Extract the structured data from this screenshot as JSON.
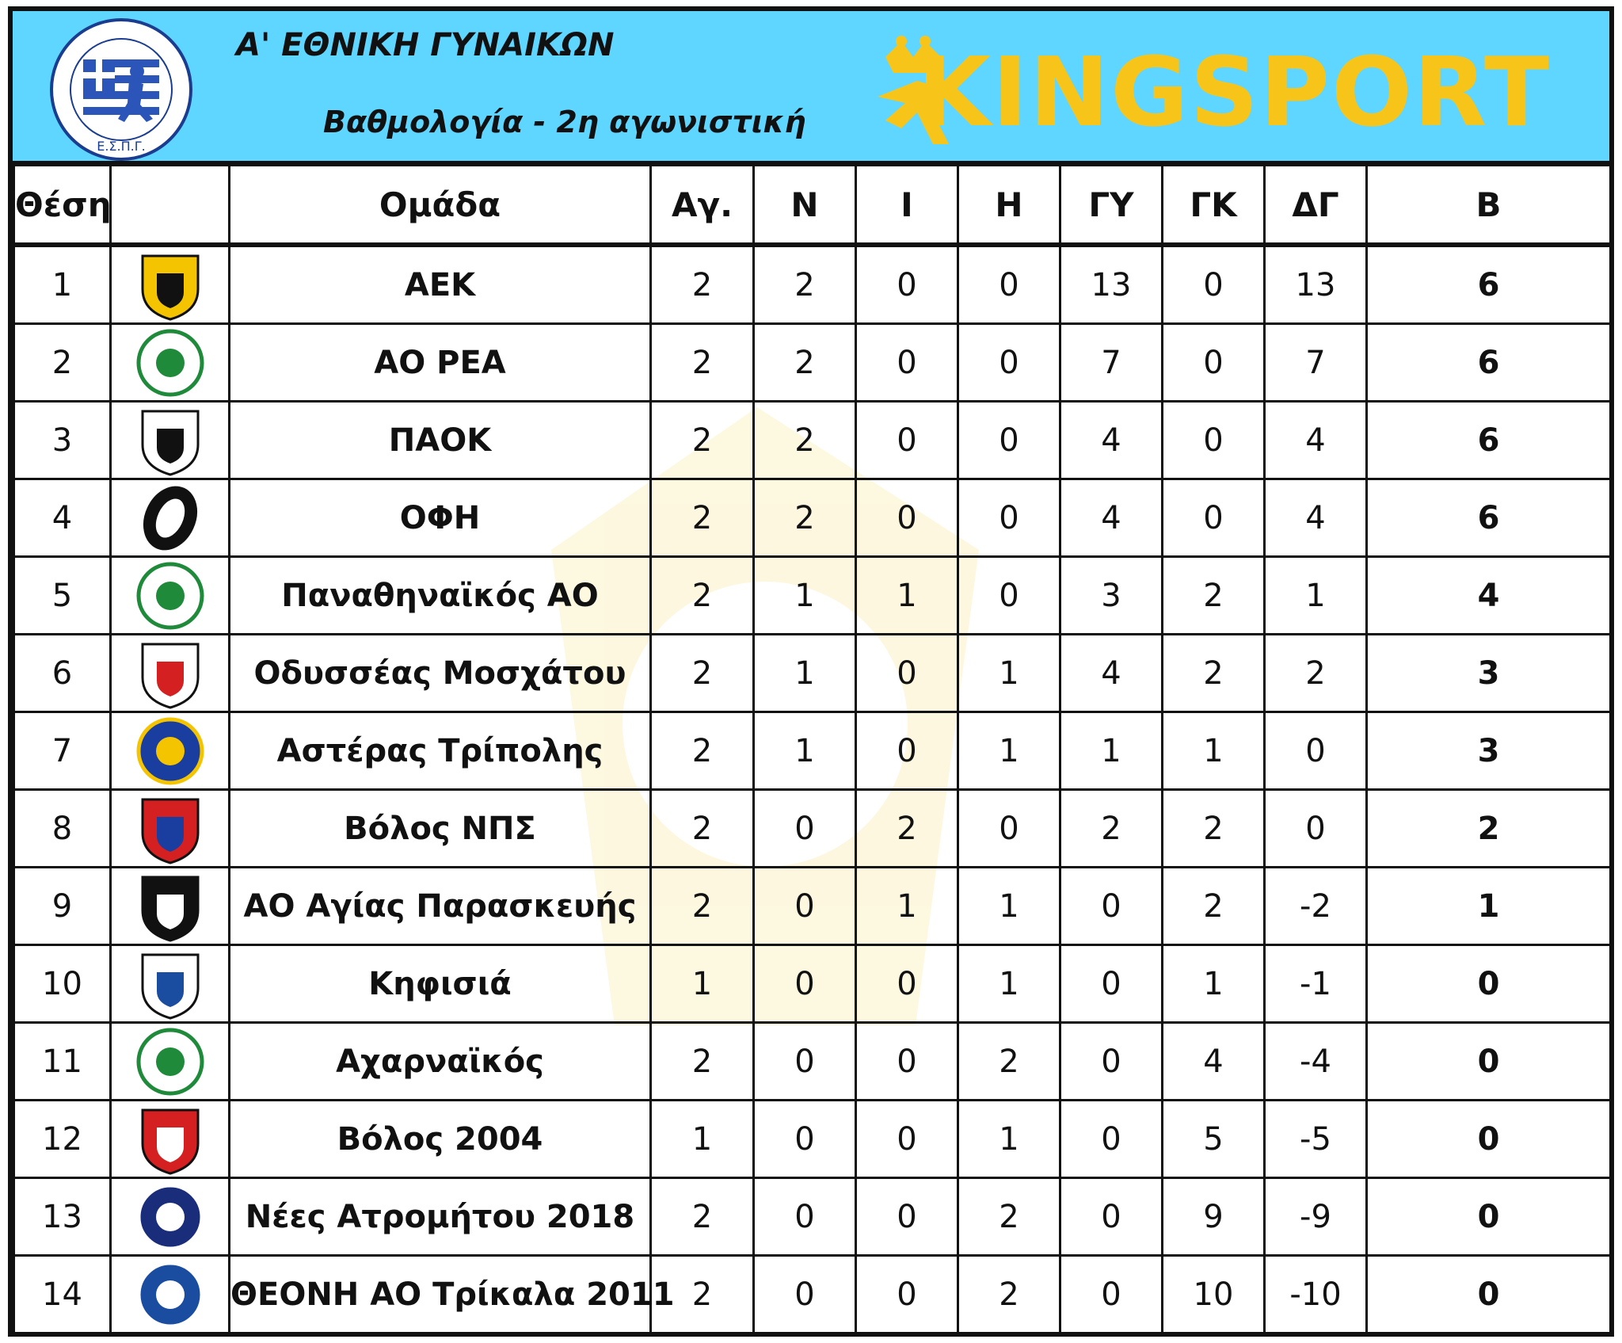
{
  "header": {
    "title": "Α' ΕΘΝΙΚΗ ΓΥΝΑΙΚΩΝ",
    "subtitle": "Βαθμολογία - 2η αγωνιστική",
    "brand": "KINGSPORT",
    "logo_text": "Ε.Σ.Π.Γ."
  },
  "columns": [
    "Θέση",
    "",
    "Ομάδα",
    "Αγ.",
    "Ν",
    "Ι",
    "Η",
    "ΓΥ",
    "ΓΚ",
    "ΔΓ",
    "Β"
  ],
  "rows": [
    {
      "pos": "1",
      "team": "ΑΕΚ",
      "p": "2",
      "w": "2",
      "d": "0",
      "l": "0",
      "gf": "13",
      "ga": "0",
      "gd": "13",
      "pts": "6",
      "crest": "aek-crest"
    },
    {
      "pos": "2",
      "team": "ΑΟ ΡΕΑ",
      "p": "2",
      "w": "2",
      "d": "0",
      "l": "0",
      "gf": "7",
      "ga": "0",
      "gd": "7",
      "pts": "6",
      "crest": "rea-crest"
    },
    {
      "pos": "3",
      "team": "ΠΑΟΚ",
      "p": "2",
      "w": "2",
      "d": "0",
      "l": "0",
      "gf": "4",
      "ga": "0",
      "gd": "4",
      "pts": "6",
      "crest": "paok-crest"
    },
    {
      "pos": "4",
      "team": "ΟΦΗ",
      "p": "2",
      "w": "2",
      "d": "0",
      "l": "0",
      "gf": "4",
      "ga": "0",
      "gd": "4",
      "pts": "6",
      "crest": "ofi-crest"
    },
    {
      "pos": "5",
      "team": "Παναθηναϊκός ΑΟ",
      "p": "2",
      "w": "1",
      "d": "1",
      "l": "0",
      "gf": "3",
      "ga": "2",
      "gd": "1",
      "pts": "4",
      "crest": "panathinaikos-crest"
    },
    {
      "pos": "6",
      "team": "Οδυσσέας Μοσχάτου",
      "p": "2",
      "w": "1",
      "d": "0",
      "l": "1",
      "gf": "4",
      "ga": "2",
      "gd": "2",
      "pts": "3",
      "crest": "odysseas-crest"
    },
    {
      "pos": "7",
      "team": "Αστέρας Τρίπολης",
      "p": "2",
      "w": "1",
      "d": "0",
      "l": "1",
      "gf": "1",
      "ga": "1",
      "gd": "0",
      "pts": "3",
      "crest": "asteras-crest"
    },
    {
      "pos": "8",
      "team": "Βόλος ΝΠΣ",
      "p": "2",
      "w": "0",
      "d": "2",
      "l": "0",
      "gf": "2",
      "ga": "2",
      "gd": "0",
      "pts": "2",
      "crest": "volos-nps-crest"
    },
    {
      "pos": "9",
      "team": "ΑΟ Αγίας Παρασκευής",
      "p": "2",
      "w": "0",
      "d": "1",
      "l": "1",
      "gf": "0",
      "ga": "2",
      "gd": "-2",
      "pts": "1",
      "crest": "agia-paraskevi-crest"
    },
    {
      "pos": "10",
      "team": "Κηφισιά",
      "p": "1",
      "w": "0",
      "d": "0",
      "l": "1",
      "gf": "0",
      "ga": "1",
      "gd": "-1",
      "pts": "0",
      "crest": "kifisia-crest"
    },
    {
      "pos": "11",
      "team": "Αχαρναϊκός",
      "p": "2",
      "w": "0",
      "d": "0",
      "l": "2",
      "gf": "0",
      "ga": "4",
      "gd": "-4",
      "pts": "0",
      "crest": "acharnaikos-crest"
    },
    {
      "pos": "12",
      "team": "Βόλος 2004",
      "p": "1",
      "w": "0",
      "d": "0",
      "l": "1",
      "gf": "0",
      "ga": "5",
      "gd": "-5",
      "pts": "0",
      "crest": "volos-2004-crest"
    },
    {
      "pos": "13",
      "team": "Νέες Ατρομήτου 2018",
      "p": "2",
      "w": "0",
      "d": "0",
      "l": "2",
      "gf": "0",
      "ga": "9",
      "gd": "-9",
      "pts": "0",
      "crest": "nees-atromitou-crest"
    },
    {
      "pos": "14",
      "team": "ΘΕΟΝΗ ΑΟ Τρίκαλα 2011",
      "p": "2",
      "w": "0",
      "d": "0",
      "l": "2",
      "gf": "0",
      "ga": "10",
      "gd": "-10",
      "pts": "0",
      "crest": "trikala-crest"
    }
  ],
  "colors": {
    "header_bg": "#5fd6ff",
    "brand": "#f7c51a",
    "border": "#111111"
  }
}
